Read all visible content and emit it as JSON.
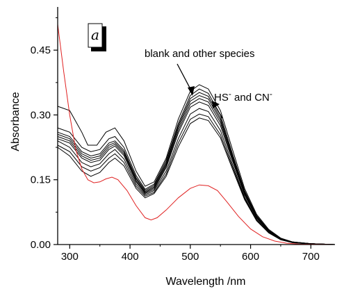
{
  "chart_data": {
    "type": "line",
    "panel_label": "a",
    "xlabel": "Wavelength /nm",
    "ylabel": "Absorbance",
    "xlim": [
      280,
      740
    ],
    "ylim": [
      0,
      0.55
    ],
    "x_ticks": [
      300,
      400,
      500,
      600,
      700
    ],
    "x_tick_labels": [
      "300",
      "400",
      "500",
      "600",
      "700"
    ],
    "y_ticks": [
      0.0,
      0.15,
      0.3,
      0.45
    ],
    "y_tick_labels": [
      "0.00",
      "0.15",
      "0.30",
      "0.45"
    ],
    "grid": false,
    "annotations": [
      {
        "text": "blank and other species"
      },
      {
        "base": "HS",
        "sup": "-",
        "middle": " and CN",
        "sup2": "-"
      }
    ],
    "series": [
      {
        "color": "#000000",
        "points": [
          [
            280,
            0.32
          ],
          [
            300,
            0.31
          ],
          [
            320,
            0.26
          ],
          [
            330,
            0.23
          ],
          [
            345,
            0.23
          ],
          [
            360,
            0.26
          ],
          [
            375,
            0.27
          ],
          [
            390,
            0.24
          ],
          [
            410,
            0.17
          ],
          [
            425,
            0.135
          ],
          [
            440,
            0.145
          ],
          [
            460,
            0.2
          ],
          [
            480,
            0.29
          ],
          [
            500,
            0.355
          ],
          [
            515,
            0.37
          ],
          [
            530,
            0.36
          ],
          [
            550,
            0.31
          ],
          [
            570,
            0.22
          ],
          [
            590,
            0.13
          ],
          [
            610,
            0.07
          ],
          [
            630,
            0.035
          ],
          [
            650,
            0.015
          ],
          [
            670,
            0.006
          ],
          [
            700,
            0.002
          ],
          [
            740,
            0.0
          ]
        ]
      },
      {
        "color": "#000000",
        "points": [
          [
            280,
            0.27
          ],
          [
            300,
            0.26
          ],
          [
            320,
            0.225
          ],
          [
            335,
            0.215
          ],
          [
            350,
            0.22
          ],
          [
            365,
            0.245
          ],
          [
            375,
            0.25
          ],
          [
            390,
            0.225
          ],
          [
            410,
            0.16
          ],
          [
            425,
            0.128
          ],
          [
            440,
            0.14
          ],
          [
            460,
            0.195
          ],
          [
            480,
            0.28
          ],
          [
            500,
            0.345
          ],
          [
            515,
            0.36
          ],
          [
            530,
            0.35
          ],
          [
            550,
            0.3
          ],
          [
            570,
            0.21
          ],
          [
            590,
            0.125
          ],
          [
            610,
            0.067
          ],
          [
            630,
            0.033
          ],
          [
            650,
            0.014
          ],
          [
            670,
            0.006
          ],
          [
            700,
            0.002
          ],
          [
            740,
            0.0
          ]
        ]
      },
      {
        "color": "#000000",
        "points": [
          [
            280,
            0.26
          ],
          [
            300,
            0.25
          ],
          [
            320,
            0.215
          ],
          [
            335,
            0.205
          ],
          [
            350,
            0.21
          ],
          [
            365,
            0.235
          ],
          [
            375,
            0.24
          ],
          [
            390,
            0.218
          ],
          [
            410,
            0.155
          ],
          [
            425,
            0.125
          ],
          [
            440,
            0.137
          ],
          [
            460,
            0.19
          ],
          [
            480,
            0.275
          ],
          [
            500,
            0.338
          ],
          [
            515,
            0.352
          ],
          [
            530,
            0.343
          ],
          [
            550,
            0.293
          ],
          [
            570,
            0.206
          ],
          [
            590,
            0.122
          ],
          [
            610,
            0.065
          ],
          [
            630,
            0.032
          ],
          [
            650,
            0.014
          ],
          [
            670,
            0.006
          ],
          [
            700,
            0.002
          ],
          [
            740,
            0.0
          ]
        ]
      },
      {
        "color": "#000000",
        "points": [
          [
            280,
            0.255
          ],
          [
            300,
            0.245
          ],
          [
            320,
            0.21
          ],
          [
            335,
            0.2
          ],
          [
            350,
            0.205
          ],
          [
            365,
            0.23
          ],
          [
            375,
            0.236
          ],
          [
            390,
            0.214
          ],
          [
            410,
            0.152
          ],
          [
            425,
            0.122
          ],
          [
            440,
            0.134
          ],
          [
            460,
            0.186
          ],
          [
            480,
            0.27
          ],
          [
            500,
            0.332
          ],
          [
            515,
            0.345
          ],
          [
            530,
            0.337
          ],
          [
            550,
            0.288
          ],
          [
            570,
            0.202
          ],
          [
            590,
            0.12
          ],
          [
            610,
            0.064
          ],
          [
            630,
            0.031
          ],
          [
            650,
            0.013
          ],
          [
            670,
            0.005
          ],
          [
            700,
            0.002
          ],
          [
            740,
            0.0
          ]
        ]
      },
      {
        "color": "#000000",
        "points": [
          [
            280,
            0.25
          ],
          [
            300,
            0.24
          ],
          [
            320,
            0.205
          ],
          [
            335,
            0.195
          ],
          [
            350,
            0.2
          ],
          [
            365,
            0.225
          ],
          [
            375,
            0.232
          ],
          [
            390,
            0.21
          ],
          [
            410,
            0.148
          ],
          [
            425,
            0.12
          ],
          [
            440,
            0.131
          ],
          [
            460,
            0.182
          ],
          [
            480,
            0.264
          ],
          [
            500,
            0.325
          ],
          [
            515,
            0.338
          ],
          [
            530,
            0.33
          ],
          [
            550,
            0.282
          ],
          [
            570,
            0.198
          ],
          [
            590,
            0.117
          ],
          [
            610,
            0.062
          ],
          [
            630,
            0.03
          ],
          [
            650,
            0.013
          ],
          [
            670,
            0.005
          ],
          [
            700,
            0.002
          ],
          [
            740,
            0.0
          ]
        ]
      },
      {
        "color": "#000000",
        "points": [
          [
            280,
            0.245
          ],
          [
            300,
            0.235
          ],
          [
            320,
            0.2
          ],
          [
            335,
            0.19
          ],
          [
            350,
            0.195
          ],
          [
            365,
            0.22
          ],
          [
            375,
            0.228
          ],
          [
            390,
            0.206
          ],
          [
            410,
            0.145
          ],
          [
            425,
            0.118
          ],
          [
            440,
            0.128
          ],
          [
            460,
            0.178
          ],
          [
            480,
            0.258
          ],
          [
            500,
            0.318
          ],
          [
            515,
            0.33
          ],
          [
            530,
            0.322
          ],
          [
            550,
            0.275
          ],
          [
            570,
            0.194
          ],
          [
            590,
            0.115
          ],
          [
            610,
            0.061
          ],
          [
            630,
            0.03
          ],
          [
            650,
            0.013
          ],
          [
            670,
            0.005
          ],
          [
            700,
            0.002
          ],
          [
            740,
            0.0
          ]
        ]
      },
      {
        "color": "#000000",
        "points": [
          [
            280,
            0.24
          ],
          [
            300,
            0.225
          ],
          [
            320,
            0.19
          ],
          [
            335,
            0.18
          ],
          [
            350,
            0.187
          ],
          [
            365,
            0.21
          ],
          [
            375,
            0.22
          ],
          [
            390,
            0.198
          ],
          [
            410,
            0.14
          ],
          [
            425,
            0.115
          ],
          [
            440,
            0.125
          ],
          [
            460,
            0.17
          ],
          [
            480,
            0.245
          ],
          [
            500,
            0.302
          ],
          [
            515,
            0.315
          ],
          [
            530,
            0.308
          ],
          [
            550,
            0.264
          ],
          [
            570,
            0.186
          ],
          [
            590,
            0.11
          ],
          [
            610,
            0.058
          ],
          [
            630,
            0.028
          ],
          [
            650,
            0.012
          ],
          [
            670,
            0.005
          ],
          [
            700,
            0.002
          ],
          [
            740,
            0.0
          ]
        ]
      },
      {
        "color": "#000000",
        "points": [
          [
            280,
            0.23
          ],
          [
            300,
            0.215
          ],
          [
            320,
            0.18
          ],
          [
            335,
            0.17
          ],
          [
            350,
            0.178
          ],
          [
            365,
            0.2
          ],
          [
            375,
            0.21
          ],
          [
            390,
            0.19
          ],
          [
            410,
            0.135
          ],
          [
            425,
            0.112
          ],
          [
            440,
            0.121
          ],
          [
            460,
            0.163
          ],
          [
            480,
            0.235
          ],
          [
            500,
            0.29
          ],
          [
            515,
            0.302
          ],
          [
            530,
            0.296
          ],
          [
            550,
            0.254
          ],
          [
            570,
            0.18
          ],
          [
            590,
            0.107
          ],
          [
            610,
            0.057
          ],
          [
            630,
            0.028
          ],
          [
            650,
            0.012
          ],
          [
            670,
            0.005
          ],
          [
            700,
            0.002
          ],
          [
            740,
            0.0
          ]
        ]
      },
      {
        "color": "#000000",
        "points": [
          [
            280,
            0.225
          ],
          [
            300,
            0.205
          ],
          [
            320,
            0.17
          ],
          [
            335,
            0.158
          ],
          [
            350,
            0.167
          ],
          [
            365,
            0.19
          ],
          [
            375,
            0.2
          ],
          [
            390,
            0.182
          ],
          [
            410,
            0.13
          ],
          [
            425,
            0.108
          ],
          [
            440,
            0.118
          ],
          [
            460,
            0.158
          ],
          [
            480,
            0.226
          ],
          [
            500,
            0.28
          ],
          [
            515,
            0.293
          ],
          [
            530,
            0.287
          ],
          [
            550,
            0.247
          ],
          [
            570,
            0.175
          ],
          [
            590,
            0.104
          ],
          [
            610,
            0.055
          ],
          [
            630,
            0.027
          ],
          [
            650,
            0.011
          ],
          [
            670,
            0.004
          ],
          [
            700,
            0.001
          ],
          [
            740,
            0.0
          ]
        ]
      },
      {
        "color": "#e02020",
        "points": [
          [
            280,
            0.51
          ],
          [
            290,
            0.4
          ],
          [
            300,
            0.3
          ],
          [
            310,
            0.22
          ],
          [
            320,
            0.175
          ],
          [
            330,
            0.15
          ],
          [
            340,
            0.143
          ],
          [
            350,
            0.145
          ],
          [
            360,
            0.152
          ],
          [
            370,
            0.156
          ],
          [
            380,
            0.15
          ],
          [
            395,
            0.125
          ],
          [
            410,
            0.09
          ],
          [
            425,
            0.062
          ],
          [
            435,
            0.057
          ],
          [
            445,
            0.062
          ],
          [
            460,
            0.08
          ],
          [
            480,
            0.108
          ],
          [
            500,
            0.13
          ],
          [
            515,
            0.138
          ],
          [
            530,
            0.136
          ],
          [
            545,
            0.125
          ],
          [
            560,
            0.1
          ],
          [
            580,
            0.065
          ],
          [
            600,
            0.036
          ],
          [
            620,
            0.018
          ],
          [
            640,
            0.008
          ],
          [
            660,
            0.003
          ],
          [
            680,
            0.001
          ],
          [
            740,
            0.0
          ]
        ]
      }
    ]
  }
}
